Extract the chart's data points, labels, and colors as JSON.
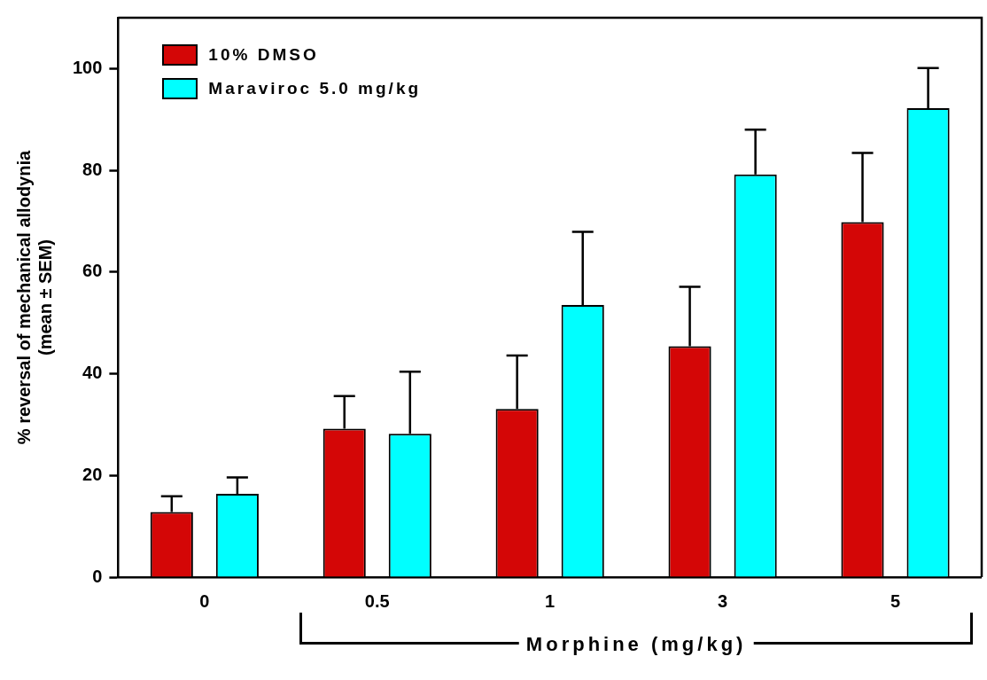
{
  "chart_data": {
    "type": "bar",
    "ylabel": "% reversal of mechanical allodynia\n(mean ± SEM)",
    "xlabel": "Morphine (mg/kg)",
    "categories": [
      "0",
      "0.5",
      "1",
      "3",
      "5"
    ],
    "series": [
      {
        "name": "10% DMSO",
        "color": "#d40606",
        "values": [
          12.8,
          29.2,
          33.1,
          45.4,
          69.8
        ],
        "errors": [
          [
            12.8,
            15.9
          ],
          [
            29.2,
            35.6
          ],
          [
            33.1,
            43.6
          ],
          [
            45.4,
            57.1
          ],
          [
            69.8,
            83.4
          ]
        ]
      },
      {
        "name": "Maraviroc 5.0 mg/kg",
        "color": "#00ffff",
        "values": [
          16.4,
          28.2,
          53.5,
          79.2,
          92.2
        ],
        "errors": [
          [
            16.4,
            19.6
          ],
          [
            28.2,
            40.4
          ],
          [
            53.5,
            67.9
          ],
          [
            79.2,
            88.0
          ],
          [
            92.2,
            100.1
          ]
        ]
      }
    ],
    "ylim": [
      0,
      110
    ],
    "yticks": [
      0,
      20,
      40,
      60,
      80,
      100
    ],
    "grid": false,
    "legend": "top left"
  }
}
